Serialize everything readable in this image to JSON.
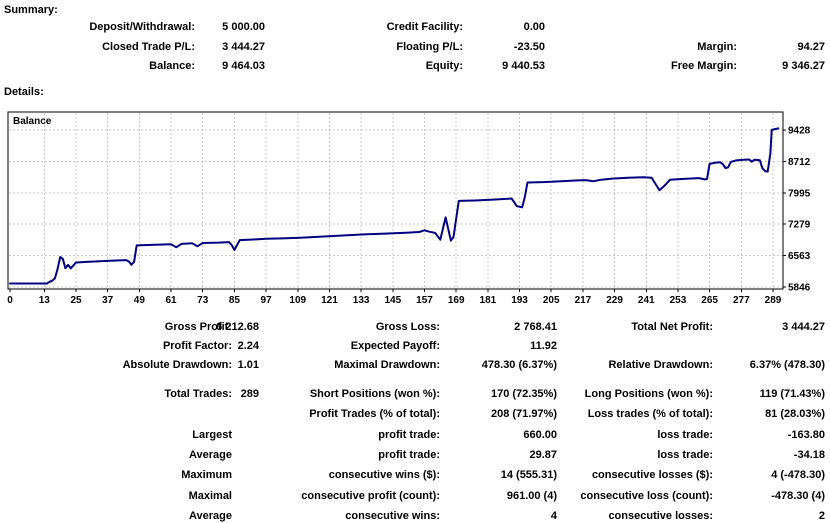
{
  "summary": {
    "title": "Summary:",
    "columns": [
      {
        "rows": [
          {
            "label": "Deposit/Withdrawal:",
            "value": "5 000.00"
          },
          {
            "label": "Closed Trade P/L:",
            "value": "3 444.27"
          },
          {
            "label": "Balance:",
            "value": "9 464.03"
          }
        ]
      },
      {
        "rows": [
          {
            "label": "Credit Facility:",
            "value": "0.00"
          },
          {
            "label": "Floating P/L:",
            "value": "-23.50"
          },
          {
            "label": "Equity:",
            "value": "9 440.53"
          }
        ]
      },
      {
        "rows": [
          {
            "label": "",
            "value": ""
          },
          {
            "label": "Margin:",
            "value": "94.27"
          },
          {
            "label": "Free Margin:",
            "value": "9 346.27"
          }
        ]
      }
    ]
  },
  "details": {
    "title": "Details:"
  },
  "chart_data": {
    "type": "line",
    "title": "Balance",
    "legend_label": "Balance",
    "x_ticks": [
      0,
      13,
      25,
      37,
      49,
      61,
      73,
      85,
      97,
      109,
      121,
      133,
      145,
      157,
      169,
      181,
      193,
      205,
      217,
      229,
      241,
      253,
      265,
      277,
      289
    ],
    "y_ticks": [
      9428,
      8712,
      7995,
      7279,
      6563,
      5846
    ],
    "x_range": [
      0,
      289
    ],
    "grid": true,
    "line_color": "#000080",
    "grid_color": "#c8c8c8",
    "series": [
      {
        "name": "Balance",
        "points": [
          [
            0,
            5925
          ],
          [
            14,
            5925
          ],
          [
            15,
            5965
          ],
          [
            16,
            5990
          ],
          [
            17,
            6045
          ],
          [
            18,
            6250
          ],
          [
            19,
            6530
          ],
          [
            20,
            6490
          ],
          [
            21,
            6275
          ],
          [
            22,
            6350
          ],
          [
            23,
            6270
          ],
          [
            25,
            6405
          ],
          [
            30,
            6420
          ],
          [
            38,
            6445
          ],
          [
            44,
            6460
          ],
          [
            45,
            6430
          ],
          [
            46,
            6355
          ],
          [
            47,
            6420
          ],
          [
            48,
            6795
          ],
          [
            55,
            6810
          ],
          [
            61,
            6820
          ],
          [
            63,
            6755
          ],
          [
            65,
            6830
          ],
          [
            69,
            6845
          ],
          [
            71,
            6775
          ],
          [
            73,
            6850
          ],
          [
            79,
            6860
          ],
          [
            83,
            6870
          ],
          [
            84,
            6800
          ],
          [
            85,
            6690
          ],
          [
            87,
            6915
          ],
          [
            92,
            6930
          ],
          [
            97,
            6945
          ],
          [
            103,
            6955
          ],
          [
            110,
            6970
          ],
          [
            118,
            6995
          ],
          [
            126,
            7020
          ],
          [
            134,
            7045
          ],
          [
            142,
            7065
          ],
          [
            150,
            7085
          ],
          [
            155,
            7100
          ],
          [
            157,
            7140
          ],
          [
            159,
            7105
          ],
          [
            161,
            7080
          ],
          [
            163,
            6925
          ],
          [
            165,
            7435
          ],
          [
            167,
            6905
          ],
          [
            168,
            6990
          ],
          [
            170,
            7810
          ],
          [
            176,
            7820
          ],
          [
            182,
            7835
          ],
          [
            188,
            7855
          ],
          [
            190,
            7865
          ],
          [
            192,
            7690
          ],
          [
            194,
            7665
          ],
          [
            195,
            7900
          ],
          [
            196,
            8230
          ],
          [
            202,
            8240
          ],
          [
            208,
            8255
          ],
          [
            214,
            8275
          ],
          [
            218,
            8285
          ],
          [
            221,
            8260
          ],
          [
            224,
            8295
          ],
          [
            228,
            8320
          ],
          [
            234,
            8340
          ],
          [
            240,
            8350
          ],
          [
            243,
            8340
          ],
          [
            245,
            8150
          ],
          [
            246,
            8055
          ],
          [
            248,
            8165
          ],
          [
            250,
            8295
          ],
          [
            256,
            8315
          ],
          [
            261,
            8330
          ],
          [
            263,
            8300
          ],
          [
            264,
            8310
          ],
          [
            265,
            8655
          ],
          [
            267,
            8680
          ],
          [
            269,
            8690
          ],
          [
            270,
            8650
          ],
          [
            271,
            8560
          ],
          [
            272,
            8575
          ],
          [
            273,
            8700
          ],
          [
            275,
            8735
          ],
          [
            278,
            8750
          ],
          [
            280,
            8755
          ],
          [
            281,
            8705
          ],
          [
            282,
            8750
          ],
          [
            284,
            8740
          ],
          [
            285,
            8555
          ],
          [
            286,
            8490
          ],
          [
            287,
            8480
          ],
          [
            288,
            8900
          ],
          [
            288.5,
            9430
          ],
          [
            291,
            9464
          ]
        ]
      }
    ]
  },
  "stats": {
    "block1": {
      "columns": [
        {
          "rows": [
            {
              "label": "Gross Profit:",
              "value": "6 212.68"
            },
            {
              "label": "Profit Factor:",
              "value": "2.24"
            },
            {
              "label": "Absolute Drawdown:",
              "value": "1.01"
            }
          ]
        },
        {
          "rows": [
            {
              "label": "Gross Loss:",
              "value": "2 768.41"
            },
            {
              "label": "Expected Payoff:",
              "value": "11.92"
            },
            {
              "label": "Maximal Drawdown:",
              "value": "478.30 (6.37%)"
            }
          ]
        },
        {
          "rows": [
            {
              "label": "Total Net Profit:",
              "value": "3 444.27"
            },
            {
              "label": "",
              "value": ""
            },
            {
              "label": "Relative Drawdown:",
              "value": "6.37% (478.30)"
            }
          ]
        }
      ]
    },
    "block2": {
      "columns": [
        {
          "rows": [
            {
              "label": "Total Trades:",
              "value": "289"
            },
            {
              "label": "",
              "value": ""
            },
            {
              "label": "Largest",
              "value": ""
            },
            {
              "label": "Average",
              "value": ""
            },
            {
              "label": "Maximum",
              "value": ""
            },
            {
              "label": "Maximal",
              "value": ""
            },
            {
              "label": "Average",
              "value": ""
            }
          ]
        },
        {
          "rows": [
            {
              "label": "Short Positions (won %):",
              "value": "170 (72.35%)"
            },
            {
              "label": "Profit Trades (% of total):",
              "value": "208 (71.97%)"
            },
            {
              "label": "profit trade:",
              "value": "660.00"
            },
            {
              "label": "profit trade:",
              "value": "29.87"
            },
            {
              "label": "consecutive wins ($):",
              "value": "14 (555.31)"
            },
            {
              "label": "consecutive profit (count):",
              "value": "961.00 (4)"
            },
            {
              "label": "consecutive wins:",
              "value": "4"
            }
          ]
        },
        {
          "rows": [
            {
              "label": "Long Positions (won %):",
              "value": "119 (71.43%)"
            },
            {
              "label": "Loss trades (% of total):",
              "value": "81 (28.03%)"
            },
            {
              "label": "loss trade:",
              "value": "-163.80"
            },
            {
              "label": "loss trade:",
              "value": "-34.18"
            },
            {
              "label": "consecutive losses ($):",
              "value": "4 (-478.30)"
            },
            {
              "label": "consecutive loss (count):",
              "value": "-478.30 (4)"
            },
            {
              "label": "consecutive losses:",
              "value": "2"
            }
          ]
        }
      ]
    }
  }
}
